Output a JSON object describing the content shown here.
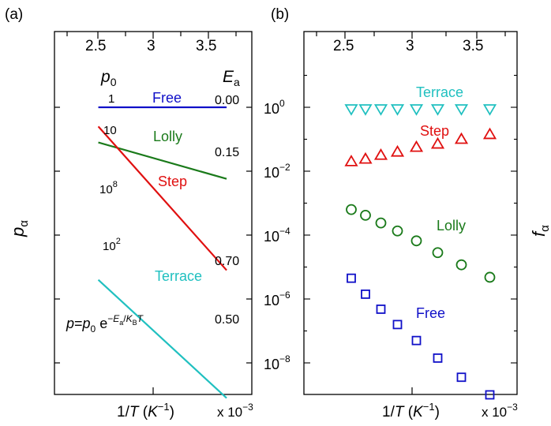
{
  "chart_data": [
    {
      "panel": "(a)",
      "type": "line",
      "x_label_main": "1/",
      "x_label_var": "T",
      "x_label_unit_open": " (",
      "x_label_unit_base": "K",
      "x_label_unit_exp": "−1",
      "x_label_unit_close": ")",
      "x_multiplier": "x 10",
      "x_multiplier_exp": "−3",
      "y_label": "p",
      "y_label_sub": "α",
      "xlim": [
        2.0,
        3.8
      ],
      "top_ticks": [
        "2.5",
        "3",
        "3.5"
      ],
      "top_tick_values": [
        2.5,
        3.0,
        3.5
      ],
      "col_header_left": "p",
      "col_header_left_sub": "0",
      "col_header_right": "E",
      "col_header_right_sub": "a",
      "formula": {
        "lhs": "p",
        "eq": "=",
        "p": "p",
        "p_sub": "0",
        "e": " e",
        "exp_minus": "−",
        "exp_E": "E",
        "exp_a": "a",
        "exp_slash": "/",
        "exp_K": "K",
        "exp_B": "B",
        "exp_T": "T"
      },
      "series": [
        {
          "name": "Free",
          "color": "#1010c8",
          "p0_base": "1",
          "p0_exp": "",
          "Ea": "0.00",
          "x": [
            2.4,
            3.57
          ],
          "y_norm": [
            0.0,
            0.0
          ]
        },
        {
          "name": "Lolly",
          "color": "#1a7a1a",
          "p0_base": "10",
          "p0_exp": "",
          "Ea": "0.15",
          "x": [
            2.4,
            3.57
          ],
          "y_norm": [
            0.55,
            1.12
          ]
        },
        {
          "name": "Step",
          "color": "#e01010",
          "p0_base": "10",
          "p0_exp": "8",
          "Ea": "0.70",
          "x": [
            2.4,
            3.57
          ],
          "y_norm": [
            0.3,
            2.55
          ]
        },
        {
          "name": "Terrace",
          "color": "#20c0c0",
          "p0_base": "10",
          "p0_exp": "2",
          "Ea": "0.50",
          "x": [
            2.4,
            3.57
          ],
          "y_norm": [
            2.7,
            4.55
          ]
        }
      ]
    },
    {
      "panel": "(b)",
      "type": "scatter",
      "x_label_main": "1/",
      "x_label_var": "T",
      "x_label_unit_open": " (",
      "x_label_unit_base": "K",
      "x_label_unit_exp": "−1",
      "x_label_unit_close": ")",
      "x_multiplier": "x 10",
      "x_multiplier_exp": "−3",
      "y_label": "f",
      "y_label_sub": "α",
      "xlim": [
        2.0,
        3.8
      ],
      "ylog": true,
      "ylim": [
        -9.75,
        1.7
      ],
      "top_ticks": [
        "2.5",
        "3",
        "3.5"
      ],
      "top_tick_values": [
        2.5,
        3.0,
        3.5
      ],
      "y_ticks": [
        {
          "base": "10",
          "exp": "0",
          "value": 0
        },
        {
          "base": "10",
          "exp": "−2",
          "value": -2
        },
        {
          "base": "10",
          "exp": "−4",
          "value": -4
        },
        {
          "base": "10",
          "exp": "−6",
          "value": -6
        },
        {
          "base": "10",
          "exp": "−8",
          "value": -8
        }
      ],
      "series": [
        {
          "name": "Terrace",
          "color": "#20c0c0",
          "marker": "triangle-down",
          "x": [
            2.4,
            2.52,
            2.65,
            2.79,
            2.95,
            3.13,
            3.33,
            3.57
          ],
          "log10_y": [
            -0.05,
            -0.05,
            -0.05,
            -0.05,
            -0.05,
            -0.05,
            -0.05,
            -0.05
          ]
        },
        {
          "name": "Step",
          "color": "#e01010",
          "marker": "triangle-up",
          "x": [
            2.4,
            2.52,
            2.65,
            2.79,
            2.95,
            3.13,
            3.33,
            3.57
          ],
          "log10_y": [
            -1.7,
            -1.62,
            -1.5,
            -1.4,
            -1.25,
            -1.15,
            -1.0,
            -0.85
          ]
        },
        {
          "name": "Lolly",
          "color": "#1a7a1a",
          "marker": "circle",
          "x": [
            2.4,
            2.52,
            2.65,
            2.79,
            2.95,
            3.13,
            3.33,
            3.57
          ],
          "log10_y": [
            -3.2,
            -3.38,
            -3.62,
            -3.87,
            -4.18,
            -4.55,
            -4.93,
            -5.32
          ]
        },
        {
          "name": "Free",
          "color": "#1010c8",
          "marker": "square",
          "x": [
            2.4,
            2.52,
            2.65,
            2.79,
            2.95,
            3.13,
            3.33,
            3.57
          ],
          "log10_y": [
            -5.35,
            -5.85,
            -6.32,
            -6.8,
            -7.3,
            -7.85,
            -8.45,
            -9.0
          ]
        }
      ]
    }
  ]
}
